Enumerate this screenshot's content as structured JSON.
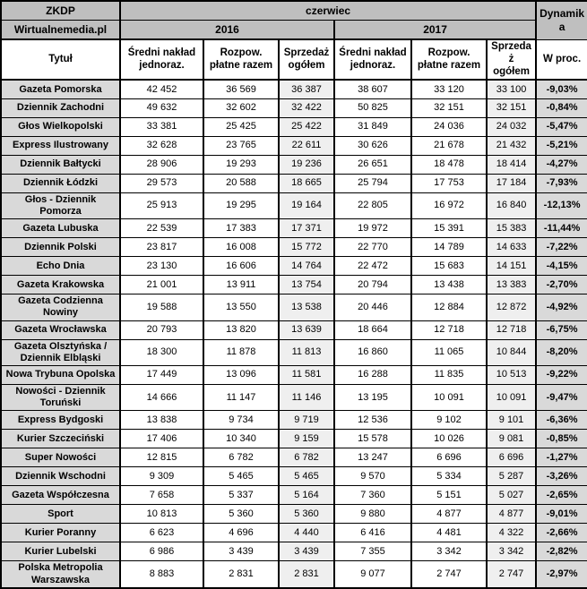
{
  "header": {
    "org": "ZKDP",
    "source": "Wirtualnemedia.pl",
    "month": "czerwiec",
    "dynamics": "Dynamika",
    "year_left": "2016",
    "year_right": "2017",
    "title_column": "Tytuł",
    "percent_column": "W proc.",
    "metric_columns": [
      "Średni nakład jednoraz.",
      "Rozpow. płatne razem",
      "Sprzedaż ogółem"
    ]
  },
  "colors": {
    "header_bg": "#bfbfbf",
    "title_col_bg": "#d9d9d9",
    "sales_col_bg": "#efefef",
    "percent_col_bg": "#d9d9d9",
    "border": "#000000"
  },
  "chart_data": {
    "type": "table",
    "title": "ZKDP / Wirtualnemedia.pl — czerwiec 2016 vs 2017",
    "column_groups": [
      "2016",
      "2017"
    ],
    "columns": [
      "Tytuł",
      "Średni nakład jednoraz. 2016",
      "Rozpow. płatne razem 2016",
      "Sprzedaż ogółem 2016",
      "Średni nakład jednoraz. 2017",
      "Rozpow. płatne razem 2017",
      "Sprzedaż ogółem 2017",
      "W proc."
    ],
    "rows": [
      {
        "title": "Gazeta Pomorska",
        "y2016": [
          "42 452",
          "36 569",
          "36 387"
        ],
        "y2017": [
          "38 607",
          "33 120",
          "33 100"
        ],
        "dynamics": "-9,03%"
      },
      {
        "title": "Dziennik Zachodni",
        "y2016": [
          "49 632",
          "32 602",
          "32 422"
        ],
        "y2017": [
          "50 825",
          "32 151",
          "32 151"
        ],
        "dynamics": "-0,84%"
      },
      {
        "title": "Głos Wielkopolski",
        "y2016": [
          "33 381",
          "25 425",
          "25 422"
        ],
        "y2017": [
          "31 849",
          "24 036",
          "24 032"
        ],
        "dynamics": "-5,47%"
      },
      {
        "title": "Express Ilustrowany",
        "y2016": [
          "32 628",
          "23 765",
          "22 611"
        ],
        "y2017": [
          "30 626",
          "21 678",
          "21 432"
        ],
        "dynamics": "-5,21%"
      },
      {
        "title": "Dziennik Bałtycki",
        "y2016": [
          "28 906",
          "19 293",
          "19 236"
        ],
        "y2017": [
          "26 651",
          "18 478",
          "18 414"
        ],
        "dynamics": "-4,27%"
      },
      {
        "title": "Dziennik Łódzki",
        "y2016": [
          "29 573",
          "20 588",
          "18 665"
        ],
        "y2017": [
          "25 794",
          "17 753",
          "17 184"
        ],
        "dynamics": "-7,93%"
      },
      {
        "title": "Głos - Dziennik Pomorza",
        "y2016": [
          "25 913",
          "19 295",
          "19 164"
        ],
        "y2017": [
          "22 805",
          "16 972",
          "16 840"
        ],
        "dynamics": "-12,13%"
      },
      {
        "title": "Gazeta Lubuska",
        "y2016": [
          "22 539",
          "17 383",
          "17 371"
        ],
        "y2017": [
          "19 972",
          "15 391",
          "15 383"
        ],
        "dynamics": "-11,44%"
      },
      {
        "title": "Dziennik Polski",
        "y2016": [
          "23 817",
          "16 008",
          "15 772"
        ],
        "y2017": [
          "22 770",
          "14 789",
          "14 633"
        ],
        "dynamics": "-7,22%"
      },
      {
        "title": "Echo Dnia",
        "y2016": [
          "23 130",
          "16 606",
          "14 764"
        ],
        "y2017": [
          "22 472",
          "15 683",
          "14 151"
        ],
        "dynamics": "-4,15%"
      },
      {
        "title": "Gazeta Krakowska",
        "y2016": [
          "21 001",
          "13 911",
          "13 754"
        ],
        "y2017": [
          "20 794",
          "13 438",
          "13 383"
        ],
        "dynamics": "-2,70%"
      },
      {
        "title": "Gazeta Codzienna Nowiny",
        "y2016": [
          "19 588",
          "13 550",
          "13 538"
        ],
        "y2017": [
          "20 446",
          "12 884",
          "12 872"
        ],
        "dynamics": "-4,92%"
      },
      {
        "title": "Gazeta Wrocławska",
        "y2016": [
          "20 793",
          "13 820",
          "13 639"
        ],
        "y2017": [
          "18 664",
          "12 718",
          "12 718"
        ],
        "dynamics": "-6,75%"
      },
      {
        "title": "Gazeta Olsztyńska / Dziennik Elbląski",
        "y2016": [
          "18 300",
          "11 878",
          "11 813"
        ],
        "y2017": [
          "16 860",
          "11 065",
          "10 844"
        ],
        "dynamics": "-8,20%"
      },
      {
        "title": "Nowa Trybuna Opolska",
        "y2016": [
          "17 449",
          "13 096",
          "11 581"
        ],
        "y2017": [
          "16 288",
          "11 835",
          "10 513"
        ],
        "dynamics": "-9,22%"
      },
      {
        "title": "Nowości - Dziennik Toruński",
        "y2016": [
          "14 666",
          "11 147",
          "11 146"
        ],
        "y2017": [
          "13 195",
          "10 091",
          "10 091"
        ],
        "dynamics": "-9,47%"
      },
      {
        "title": "Express Bydgoski",
        "y2016": [
          "13 838",
          "9 734",
          "9 719"
        ],
        "y2017": [
          "12 536",
          "9 102",
          "9 101"
        ],
        "dynamics": "-6,36%"
      },
      {
        "title": "Kurier Szczeciński",
        "y2016": [
          "17 406",
          "10 340",
          "9 159"
        ],
        "y2017": [
          "15 578",
          "10 026",
          "9 081"
        ],
        "dynamics": "-0,85%"
      },
      {
        "title": "Super Nowości",
        "y2016": [
          "12 815",
          "6 782",
          "6 782"
        ],
        "y2017": [
          "13 247",
          "6 696",
          "6 696"
        ],
        "dynamics": "-1,27%"
      },
      {
        "title": "Dziennik Wschodni",
        "y2016": [
          "9 309",
          "5 465",
          "5 465"
        ],
        "y2017": [
          "9 570",
          "5 334",
          "5 287"
        ],
        "dynamics": "-3,26%"
      },
      {
        "title": "Gazeta Współczesna",
        "y2016": [
          "7 658",
          "5 337",
          "5 164"
        ],
        "y2017": [
          "7 360",
          "5 151",
          "5 027"
        ],
        "dynamics": "-2,65%"
      },
      {
        "title": "Sport",
        "y2016": [
          "10 813",
          "5 360",
          "5 360"
        ],
        "y2017": [
          "9 880",
          "4 877",
          "4 877"
        ],
        "dynamics": "-9,01%"
      },
      {
        "title": "Kurier Poranny",
        "y2016": [
          "6 623",
          "4 696",
          "4 440"
        ],
        "y2017": [
          "6 416",
          "4 481",
          "4 322"
        ],
        "dynamics": "-2,66%"
      },
      {
        "title": "Kurier Lubelski",
        "y2016": [
          "6 986",
          "3 439",
          "3 439"
        ],
        "y2017": [
          "7 355",
          "3 342",
          "3 342"
        ],
        "dynamics": "-2,82%"
      },
      {
        "title": "Polska Metropolia Warszawska",
        "y2016": [
          "8 883",
          "2 831",
          "2 831"
        ],
        "y2017": [
          "9 077",
          "2 747",
          "2 747"
        ],
        "dynamics": "-2,97%"
      }
    ]
  }
}
